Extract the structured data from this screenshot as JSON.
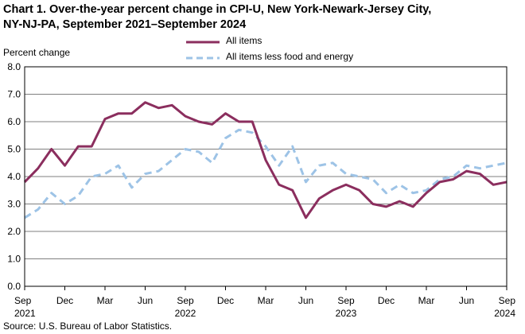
{
  "title_line1": "Chart 1. Over-the-year percent change in CPI-U, New York-Newark-Jersey City,",
  "title_line2": "NY-NJ-PA, September 2021–September 2024",
  "source": "Source: U.S. Bureau of Labor Statistics.",
  "chart_data": {
    "type": "line",
    "ylabel": "Percent change",
    "ylim": [
      0,
      8
    ],
    "y_ticks": [
      "0.0",
      "1.0",
      "2.0",
      "3.0",
      "4.0",
      "5.0",
      "6.0",
      "7.0",
      "8.0"
    ],
    "x_tick_labels": [
      {
        "index": 0,
        "lines": [
          "Sep",
          "2021"
        ]
      },
      {
        "index": 3,
        "lines": [
          "Dec"
        ]
      },
      {
        "index": 6,
        "lines": [
          "Mar"
        ]
      },
      {
        "index": 9,
        "lines": [
          "Jun"
        ]
      },
      {
        "index": 12,
        "lines": [
          "Sep",
          "2022"
        ]
      },
      {
        "index": 15,
        "lines": [
          "Dec"
        ]
      },
      {
        "index": 18,
        "lines": [
          "Mar"
        ]
      },
      {
        "index": 21,
        "lines": [
          "Jun"
        ]
      },
      {
        "index": 24,
        "lines": [
          "Sep",
          "2023"
        ]
      },
      {
        "index": 27,
        "lines": [
          "Dec"
        ]
      },
      {
        "index": 30,
        "lines": [
          "Mar"
        ]
      },
      {
        "index": 33,
        "lines": [
          "Jun"
        ]
      },
      {
        "index": 36,
        "lines": [
          "Sep",
          "2024"
        ]
      }
    ],
    "series": [
      {
        "name": "All items",
        "color": "#8b2e5e",
        "style": "solid",
        "values": [
          3.8,
          4.3,
          5.0,
          4.4,
          5.1,
          5.1,
          6.1,
          6.3,
          6.3,
          6.7,
          6.5,
          6.6,
          6.2,
          6.0,
          5.9,
          6.3,
          6.0,
          6.0,
          4.6,
          3.7,
          3.5,
          2.5,
          3.2,
          3.5,
          3.7,
          3.5,
          3.0,
          2.9,
          3.1,
          2.9,
          3.4,
          3.8,
          3.9,
          4.2,
          4.1,
          3.7,
          3.8
        ]
      },
      {
        "name": "All items less food and energy",
        "color": "#9dc3e6",
        "style": "dashed",
        "values": [
          2.5,
          2.8,
          3.4,
          3.0,
          3.3,
          4.0,
          4.1,
          4.4,
          3.6,
          4.1,
          4.2,
          4.6,
          5.0,
          4.9,
          4.5,
          5.4,
          5.7,
          5.6,
          5.1,
          4.4,
          5.1,
          3.8,
          4.4,
          4.5,
          4.1,
          4.0,
          3.9,
          3.4,
          3.7,
          3.4,
          3.5,
          3.9,
          4.0,
          4.4,
          4.3,
          4.4,
          4.5
        ]
      }
    ]
  }
}
